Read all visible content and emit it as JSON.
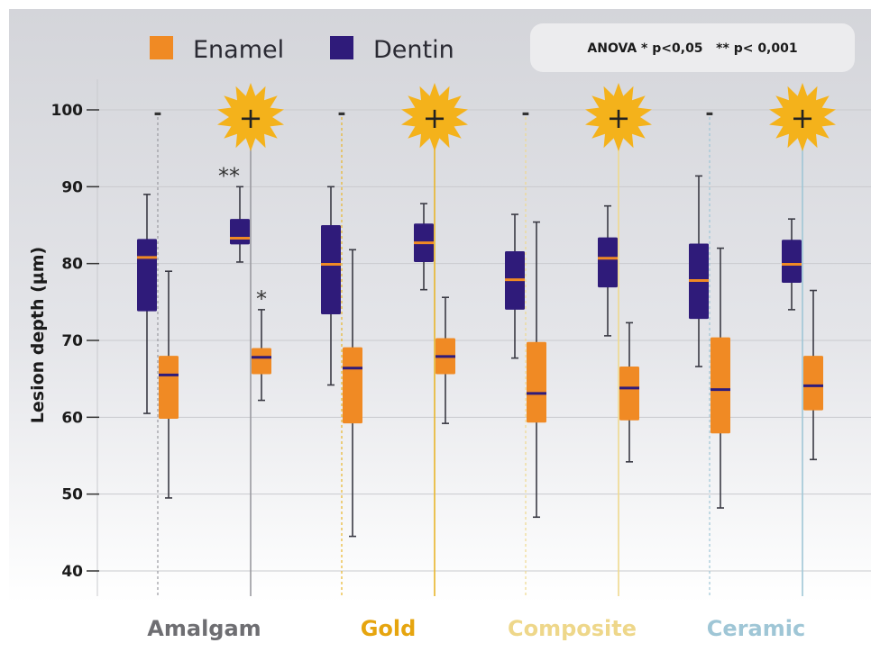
{
  "chart_data": {
    "type": "box",
    "ylabel": "Lesion depth (µm)",
    "ylim": [
      36,
      104
    ],
    "yticks": [
      "40",
      "50",
      "60",
      "70",
      "80",
      "90",
      "100"
    ],
    "grid": true,
    "legend": {
      "placement": "top-left",
      "entries": [
        {
          "name": "Enamel",
          "color": "#f08a24"
        },
        {
          "name": "Dentin",
          "color": "#2f1b7a"
        }
      ]
    },
    "annotation": "ANOVA * p<0,05   ** p< 0,001",
    "colors": {
      "enamel": "#f08a24",
      "dentin": "#2f1b7a"
    },
    "groups": [
      {
        "label": "Amalgam",
        "label_color": "#6e6e72",
        "line_color": "#9a9aa0"
      },
      {
        "label": "Gold",
        "label_color": "#e6a50f",
        "line_color": "#e8b52a"
      },
      {
        "label": "Composite",
        "label_color": "#eed78a",
        "line_color": "#efd98e"
      },
      {
        "label": "Ceramic",
        "label_color": "#9fc6d6",
        "line_color": "#9fc6d6"
      }
    ],
    "boxes": [
      {
        "group": "Amalgam",
        "condition": "-",
        "series": "Dentin",
        "min": 60.5,
        "q1": 73.8,
        "median": 80.8,
        "q3": 83.2,
        "max": 89.0
      },
      {
        "group": "Amalgam",
        "condition": "-",
        "series": "Enamel",
        "min": 49.5,
        "q1": 59.8,
        "median": 65.5,
        "q3": 68.0,
        "max": 79.0
      },
      {
        "group": "Amalgam",
        "condition": "+",
        "series": "Dentin",
        "min": 80.2,
        "q1": 82.5,
        "median": 83.3,
        "q3": 85.8,
        "max": 90.0,
        "sig": "**"
      },
      {
        "group": "Amalgam",
        "condition": "+",
        "series": "Enamel",
        "min": 62.2,
        "q1": 65.6,
        "median": 67.8,
        "q3": 69.0,
        "max": 74.0,
        "sig": "*"
      },
      {
        "group": "Gold",
        "condition": "-",
        "series": "Dentin",
        "min": 64.2,
        "q1": 73.4,
        "median": 79.9,
        "q3": 85.0,
        "max": 90.0
      },
      {
        "group": "Gold",
        "condition": "-",
        "series": "Enamel",
        "min": 44.5,
        "q1": 59.2,
        "median": 66.4,
        "q3": 69.1,
        "max": 81.8
      },
      {
        "group": "Gold",
        "condition": "+",
        "series": "Dentin",
        "min": 76.6,
        "q1": 80.2,
        "median": 82.7,
        "q3": 85.2,
        "max": 87.8
      },
      {
        "group": "Gold",
        "condition": "+",
        "series": "Enamel",
        "min": 59.2,
        "q1": 65.6,
        "median": 67.9,
        "q3": 70.3,
        "max": 75.6
      },
      {
        "group": "Composite",
        "condition": "-",
        "series": "Dentin",
        "min": 67.7,
        "q1": 74.0,
        "median": 77.9,
        "q3": 81.6,
        "max": 86.4
      },
      {
        "group": "Composite",
        "condition": "-",
        "series": "Enamel",
        "min": 47.0,
        "q1": 59.3,
        "median": 63.1,
        "q3": 69.8,
        "max": 85.4
      },
      {
        "group": "Composite",
        "condition": "+",
        "series": "Dentin",
        "min": 70.6,
        "q1": 76.9,
        "median": 80.7,
        "q3": 83.4,
        "max": 87.5
      },
      {
        "group": "Composite",
        "condition": "+",
        "series": "Enamel",
        "min": 54.2,
        "q1": 59.6,
        "median": 63.8,
        "q3": 66.6,
        "max": 72.3
      },
      {
        "group": "Ceramic",
        "condition": "-",
        "series": "Dentin",
        "min": 66.6,
        "q1": 72.8,
        "median": 77.8,
        "q3": 82.6,
        "max": 91.4
      },
      {
        "group": "Ceramic",
        "condition": "-",
        "series": "Enamel",
        "min": 48.2,
        "q1": 57.9,
        "median": 63.6,
        "q3": 70.4,
        "max": 82.0
      },
      {
        "group": "Ceramic",
        "condition": "+",
        "series": "Dentin",
        "min": 74.0,
        "q1": 77.5,
        "median": 79.9,
        "q3": 83.1,
        "max": 85.8
      },
      {
        "group": "Ceramic",
        "condition": "+",
        "series": "Enamel",
        "min": 54.5,
        "q1": 60.9,
        "median": 64.1,
        "q3": 68.0,
        "max": 76.5
      }
    ],
    "conditions": [
      "-",
      "+",
      "-",
      "+",
      "-",
      "+",
      "-",
      "+"
    ]
  }
}
